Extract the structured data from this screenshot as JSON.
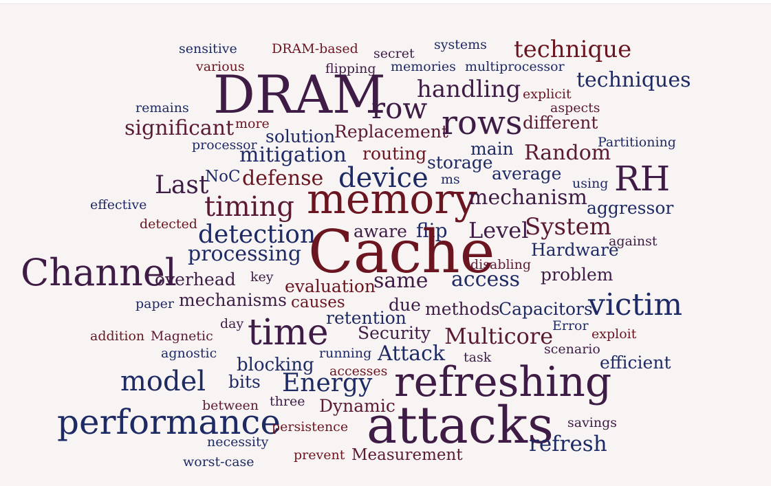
{
  "palette": {
    "background": "#f8f4f4",
    "navy": "#1e2a63",
    "purple": "#3e1c45",
    "red": "#6b1520",
    "blue": "#233f78",
    "maroon": "#5b1a34"
  },
  "words": [
    "sensitive",
    "DRAM-based",
    "secret",
    "systems",
    "technique",
    "various",
    "flipping",
    "memories",
    "multiprocessor",
    "techniques",
    "DRAM",
    "row",
    "handling",
    "explicit",
    "remains",
    "aspects",
    "significant",
    "more",
    "solution",
    "Replacement",
    "rows",
    "different",
    "processor",
    "Partitioning",
    "mitigation",
    "routing",
    "main",
    "Random",
    "storage",
    "average",
    "RH",
    "Last",
    "NoC",
    "defense",
    "device",
    "ms",
    "using",
    "memory",
    "timing",
    "mechanism",
    "aggressor",
    "effective",
    "detected",
    "System",
    "detection",
    "aware",
    "flip",
    "Level",
    "against",
    "processing",
    "Cache",
    "Hardware",
    "Channel",
    "disabling",
    "overhead",
    "key",
    "evaluation",
    "same",
    "access",
    "problem",
    "paper",
    "mechanisms",
    "causes",
    "due",
    "methods",
    "Capacitors",
    "victim",
    "day",
    "retention",
    "Error",
    "addition",
    "Magnetic",
    "time",
    "Security",
    "Multicore",
    "exploit",
    "agnostic",
    "running",
    "Attack",
    "task",
    "scenario",
    "efficient",
    "blocking",
    "accesses",
    "model",
    "bits",
    "Energy",
    "refreshing",
    "three",
    "Dynamic",
    "between",
    "performance",
    "savings",
    "persistence",
    "attacks",
    "necessity",
    "refresh",
    "prevent",
    "Measurement",
    "worst-case"
  ]
}
